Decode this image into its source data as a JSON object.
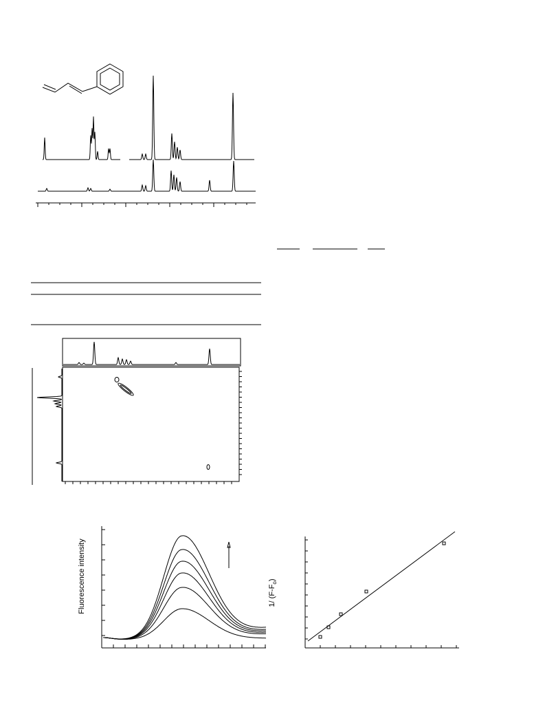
{
  "figures": [
    {
      "y_label": "Fluorescence intensity"
    },
    {
      "y_label": "1/ (F-F",
      "y_label_sub": "o",
      "y_label_end": ")"
    }
  ]
}
